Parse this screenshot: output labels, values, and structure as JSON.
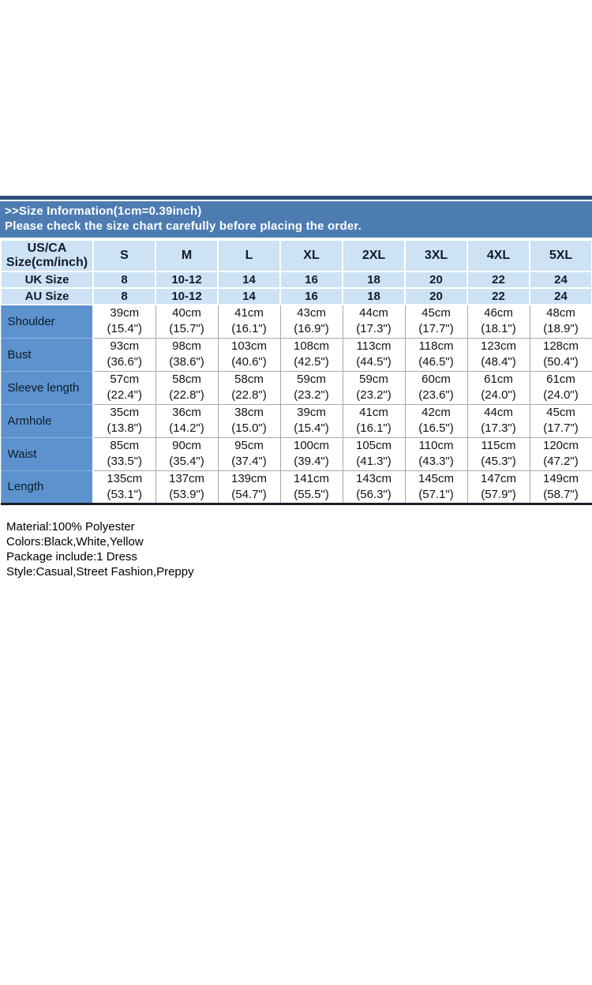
{
  "banner": {
    "title": ">>Size Information(1cm=0.39inch)",
    "subtitle": "Please check the size chart carefully before placing the order."
  },
  "table": {
    "corner_line1": "US/CA",
    "corner_line2": "Size(cm/inch)",
    "size_headers": [
      "S",
      "M",
      "L",
      "XL",
      "2XL",
      "3XL",
      "4XL",
      "5XL"
    ],
    "uk": {
      "label": "UK Size",
      "values": [
        "8",
        "10-12",
        "14",
        "16",
        "18",
        "20",
        "22",
        "24"
      ]
    },
    "au": {
      "label": "AU Size",
      "values": [
        "8",
        "10-12",
        "14",
        "16",
        "18",
        "20",
        "22",
        "24"
      ]
    },
    "rows": [
      {
        "label": "Shoulder",
        "cells": [
          {
            "cm": "39cm",
            "in": "(15.4\")"
          },
          {
            "cm": "40cm",
            "in": "(15.7\")"
          },
          {
            "cm": "41cm",
            "in": "(16.1\")"
          },
          {
            "cm": "43cm",
            "in": "(16.9\")"
          },
          {
            "cm": "44cm",
            "in": "(17.3\")"
          },
          {
            "cm": "45cm",
            "in": "(17.7\")"
          },
          {
            "cm": "46cm",
            "in": "(18.1\")"
          },
          {
            "cm": "48cm",
            "in": "(18.9\")"
          }
        ]
      },
      {
        "label": "Bust",
        "cells": [
          {
            "cm": "93cm",
            "in": "(36.6\")"
          },
          {
            "cm": "98cm",
            "in": "(38.6\")"
          },
          {
            "cm": "103cm",
            "in": "(40.6\")"
          },
          {
            "cm": "108cm",
            "in": "(42.5\")"
          },
          {
            "cm": "113cm",
            "in": "(44.5\")"
          },
          {
            "cm": "118cm",
            "in": "(46.5\")"
          },
          {
            "cm": "123cm",
            "in": "(48.4\")"
          },
          {
            "cm": "128cm",
            "in": "(50.4\")"
          }
        ]
      },
      {
        "label": "Sleeve length",
        "cells": [
          {
            "cm": "57cm",
            "in": "(22.4\")"
          },
          {
            "cm": "58cm",
            "in": "(22.8\")"
          },
          {
            "cm": "58cm",
            "in": "(22.8\")"
          },
          {
            "cm": "59cm",
            "in": "(23.2\")"
          },
          {
            "cm": "59cm",
            "in": "(23.2\")"
          },
          {
            "cm": "60cm",
            "in": "(23.6\")"
          },
          {
            "cm": "61cm",
            "in": "(24.0\")"
          },
          {
            "cm": "61cm",
            "in": "(24.0\")"
          }
        ]
      },
      {
        "label": "Armhole",
        "cells": [
          {
            "cm": "35cm",
            "in": "(13.8\")"
          },
          {
            "cm": "36cm",
            "in": "(14.2\")"
          },
          {
            "cm": "38cm",
            "in": "(15.0\")"
          },
          {
            "cm": "39cm",
            "in": "(15.4\")"
          },
          {
            "cm": "41cm",
            "in": "(16.1\")"
          },
          {
            "cm": "42cm",
            "in": "(16.5\")"
          },
          {
            "cm": "44cm",
            "in": "(17.3\")"
          },
          {
            "cm": "45cm",
            "in": "(17.7\")"
          }
        ]
      },
      {
        "label": "Waist",
        "cells": [
          {
            "cm": "85cm",
            "in": "(33.5\")"
          },
          {
            "cm": "90cm",
            "in": "(35.4\")"
          },
          {
            "cm": "95cm",
            "in": "(37.4\")"
          },
          {
            "cm": "100cm",
            "in": "(39.4\")"
          },
          {
            "cm": "105cm",
            "in": "(41.3\")"
          },
          {
            "cm": "110cm",
            "in": "(43.3\")"
          },
          {
            "cm": "115cm",
            "in": "(45.3\")"
          },
          {
            "cm": "120cm",
            "in": "(47.2\")"
          }
        ]
      },
      {
        "label": "Length",
        "cells": [
          {
            "cm": "135cm",
            "in": "(53.1\")"
          },
          {
            "cm": "137cm",
            "in": "(53.9\")"
          },
          {
            "cm": "139cm",
            "in": "(54.7\")"
          },
          {
            "cm": "141cm",
            "in": "(55.5\")"
          },
          {
            "cm": "143cm",
            "in": "(56.3\")"
          },
          {
            "cm": "145cm",
            "in": "(57.1\")"
          },
          {
            "cm": "147cm",
            "in": "(57.9\")"
          },
          {
            "cm": "149cm",
            "in": "(58.7\")"
          }
        ]
      }
    ]
  },
  "details": {
    "material": "Material:100% Polyester",
    "colors": "Colors:Black,White,Yellow",
    "package": "Package include:1 Dress",
    "style": "Style:Casual,Street Fashion,Preppy"
  },
  "theme": {
    "banner_bg": "#4d7cb2",
    "top_strip": "#2e5076",
    "header_bg": "#cde2f3",
    "label_bg": "#5c93ce",
    "bottom_border": "#16202b",
    "grid_line": "#a8a8a8"
  }
}
